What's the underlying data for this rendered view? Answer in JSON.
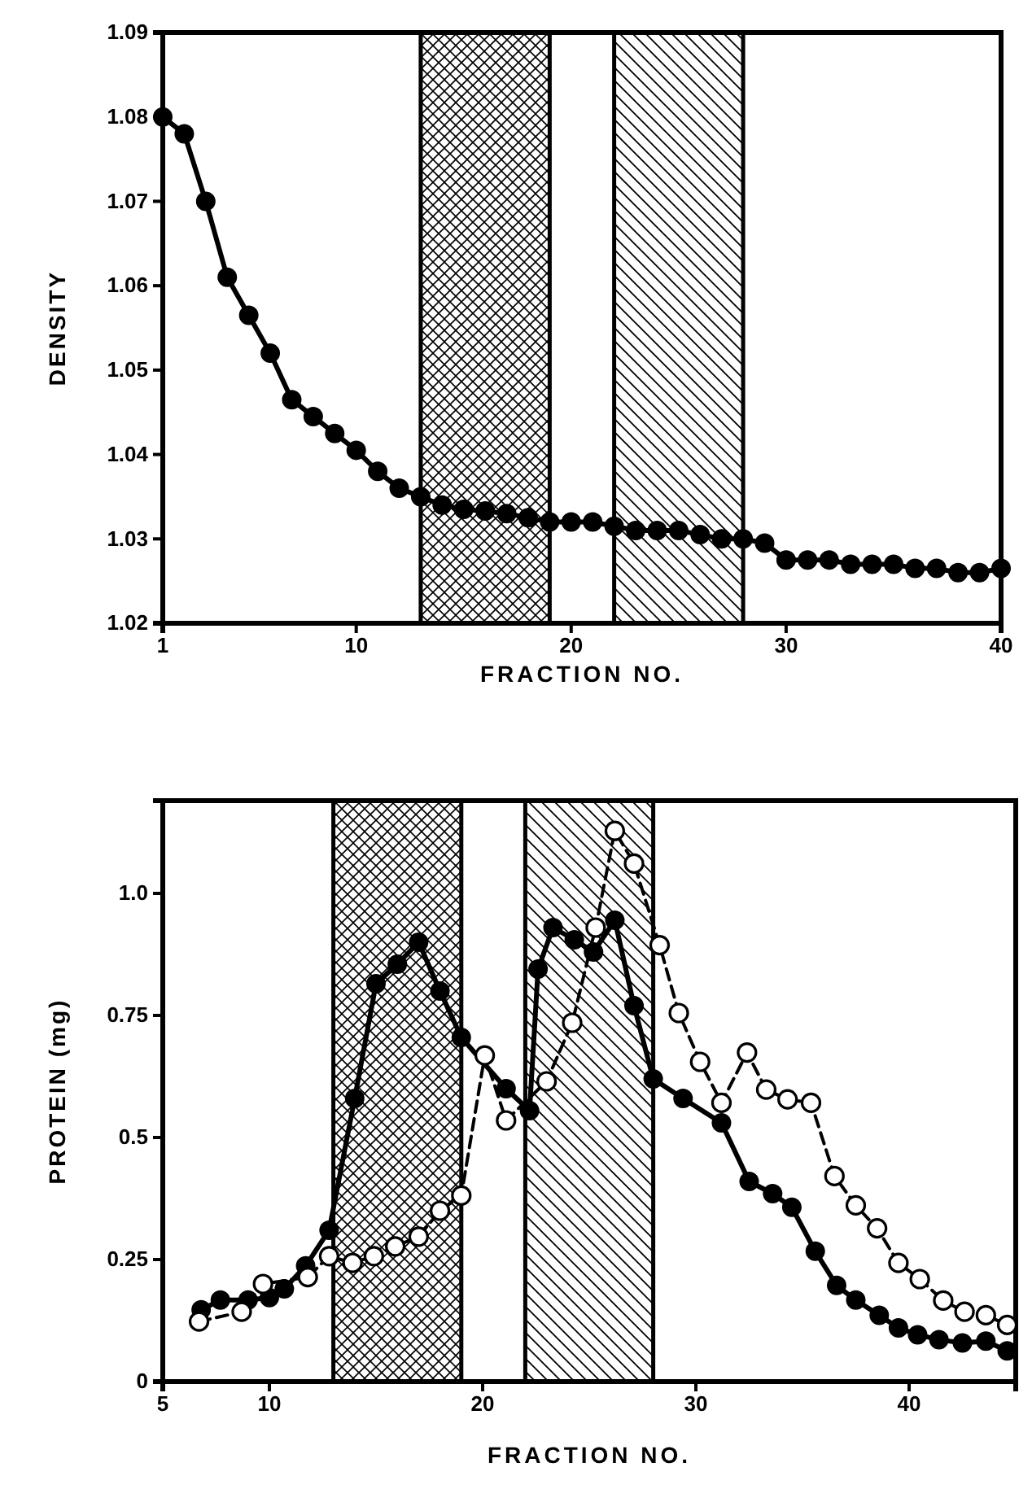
{
  "chart_data": [
    {
      "type": "line",
      "xlabel": "FRACTION NO.",
      "ylabel": "DENSITY",
      "xlim": [
        1,
        40
      ],
      "xticks": [
        1,
        10,
        20,
        30,
        40
      ],
      "ylim": [
        1.02,
        1.09
      ],
      "yticks": [
        1.02,
        1.03,
        1.04,
        1.05,
        1.06,
        1.07,
        1.08,
        1.09
      ],
      "marker": "circle",
      "line_style": "solid",
      "grid": false,
      "x": [
        1,
        2,
        3,
        4,
        5,
        6,
        7,
        8,
        9,
        10,
        11,
        12,
        13,
        14,
        15,
        16,
        17,
        18,
        19,
        20,
        21,
        22,
        23,
        24,
        25,
        26,
        27,
        28,
        29,
        30,
        31,
        32,
        33,
        34,
        35,
        36,
        37,
        38,
        39,
        40
      ],
      "series": [
        {
          "color": "#000000",
          "values": [
            1.08,
            1.078,
            1.07,
            1.061,
            1.0565,
            1.052,
            1.0465,
            1.0445,
            1.0425,
            1.0405,
            1.038,
            1.036,
            1.035,
            1.034,
            1.0335,
            1.0333,
            1.033,
            1.0325,
            1.032,
            1.032,
            1.032,
            1.0315,
            1.031,
            1.031,
            1.031,
            1.0305,
            1.03,
            1.03,
            1.0295,
            1.0275,
            1.0275,
            1.0275,
            1.027,
            1.027,
            1.027,
            1.0265,
            1.0265,
            1.026,
            1.026,
            1.0265
          ]
        }
      ],
      "bands": [
        {
          "axis": "x",
          "from": 13,
          "to": 19,
          "color": "#000000"
        },
        {
          "axis": "x",
          "from": 22,
          "to": 28,
          "color": "#000000"
        }
      ]
    },
    {
      "type": "line",
      "xlabel": "FRACTION NO.",
      "ylabel": "PROTEIN (mg)",
      "xlim": [
        5,
        45
      ],
      "xticks": [
        5,
        10,
        20,
        30,
        40
      ],
      "ylim": [
        0,
        1.19
      ],
      "yticks": [
        0,
        0.25,
        0.5,
        0.75,
        {
          "value": 1,
          "label": "1.0"
        }
      ],
      "marker": "circle",
      "grid": false,
      "series": [
        {
          "color": "#000000",
          "line_style": "solid",
          "x": [
            6.8,
            7.7,
            9,
            10,
            10.7,
            11.7,
            12.8,
            14,
            15,
            16,
            17,
            18,
            19,
            21.1,
            22.2,
            22.6,
            23.3,
            24.3,
            25.2,
            26.2,
            27.1,
            28,
            29.4,
            31.2,
            32.5,
            33.6,
            34.5,
            35.6,
            36.6,
            37.5,
            38.6,
            39.5,
            40.4,
            41.4,
            42.5,
            43.6,
            44.6
          ],
          "values": [
            0.147,
            0.167,
            0.167,
            0.172,
            0.19,
            0.237,
            0.31,
            0.58,
            0.815,
            0.855,
            0.9,
            0.8,
            0.705,
            0.6,
            0.555,
            0.845,
            0.93,
            0.905,
            0.88,
            0.945,
            0.77,
            0.62,
            0.58,
            0.53,
            0.41,
            0.385,
            0.357,
            0.267,
            0.197,
            0.167,
            0.136,
            0.11,
            0.096,
            0.086,
            0.079,
            0.083,
            0.063
          ]
        },
        {
          "color": "#000000",
          "line_style": "dashed",
          "x": [
            6.7,
            8.7,
            9.7,
            11.8,
            12.8,
            13.9,
            14.9,
            15.9,
            17,
            18,
            19,
            20.1,
            21.1,
            23,
            24.2,
            25.3,
            26.2,
            27.1,
            28.3,
            29.2,
            30.2,
            31.2,
            32.4,
            33.3,
            34.3,
            35.4,
            36.5,
            37.5,
            38.5,
            39.5,
            40.5,
            41.6,
            42.6,
            43.6,
            44.6
          ],
          "values": [
            0.123,
            0.143,
            0.2,
            0.214,
            0.257,
            0.243,
            0.257,
            0.277,
            0.297,
            0.35,
            0.381,
            0.668,
            0.535,
            0.615,
            0.735,
            0.93,
            1.128,
            1.061,
            0.894,
            0.755,
            0.655,
            0.571,
            0.674,
            0.598,
            0.578,
            0.571,
            0.421,
            0.361,
            0.314,
            0.243,
            0.21,
            0.166,
            0.143,
            0.136,
            0.116
          ]
        }
      ],
      "bands": [
        {
          "axis": "x",
          "from": 13,
          "to": 19,
          "color": "#000000"
        },
        {
          "axis": "x",
          "from": 22,
          "to": 28,
          "color": "#000000"
        }
      ]
    }
  ]
}
